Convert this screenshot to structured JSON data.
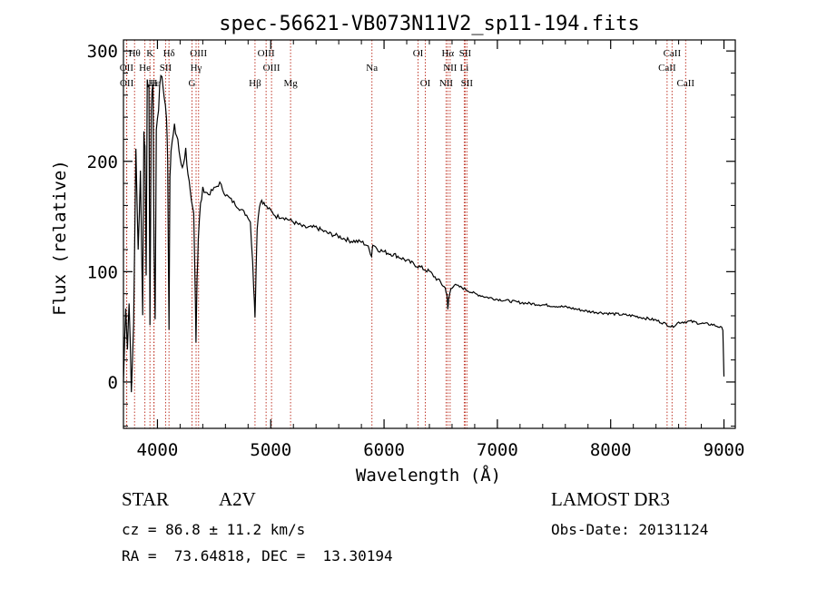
{
  "chart_data": {
    "type": "line",
    "title": "spec-56621-VB073N11V2_sp11-194.fits",
    "xlabel": "Wavelength (Å)",
    "ylabel": "Flux (relative)",
    "xlim": [
      3700,
      9100
    ],
    "ylim": [
      -42,
      310
    ],
    "x_ticks": [
      4000,
      5000,
      6000,
      7000,
      8000,
      9000
    ],
    "y_ticks": [
      0,
      100,
      200,
      300
    ],
    "series": [
      {
        "name": "flux",
        "x": [
          3700,
          3720,
          3735,
          3750,
          3770,
          3790,
          3810,
          3830,
          3850,
          3870,
          3880,
          3890,
          3900,
          3910,
          3925,
          3934,
          3945,
          3960,
          3970,
          3980,
          3990,
          4010,
          4030,
          4060,
          4080,
          4090,
          4102,
          4110,
          4120,
          4150,
          4180,
          4200,
          4220,
          4250,
          4280,
          4300,
          4320,
          4330,
          4340,
          4350,
          4360,
          4380,
          4400,
          4450,
          4500,
          4550,
          4600,
          4650,
          4700,
          4750,
          4800,
          4820,
          4840,
          4850,
          4861,
          4870,
          4880,
          4900,
          4920,
          4950,
          5000,
          5050,
          5100,
          5200,
          5300,
          5400,
          5500,
          5600,
          5700,
          5800,
          5850,
          5890,
          5900,
          5950,
          6000,
          6100,
          6200,
          6300,
          6400,
          6450,
          6500,
          6540,
          6555,
          6563,
          6570,
          6590,
          6620,
          6700,
          6800,
          6900,
          7000,
          7200,
          7400,
          7600,
          7800,
          8000,
          8200,
          8400,
          8500,
          8542,
          8600,
          8700,
          8800,
          8900,
          8960,
          8990,
          9000
        ],
        "y": [
          0,
          70,
          30,
          75,
          -10,
          55,
          210,
          120,
          190,
          60,
          230,
          210,
          100,
          270,
          270,
          50,
          250,
          270,
          120,
          60,
          230,
          250,
          280,
          260,
          240,
          200,
          50,
          190,
          210,
          230,
          220,
          200,
          195,
          210,
          180,
          160,
          150,
          100,
          40,
          95,
          130,
          160,
          175,
          170,
          175,
          180,
          170,
          165,
          160,
          155,
          150,
          145,
          110,
          85,
          60,
          100,
          140,
          160,
          165,
          160,
          155,
          150,
          150,
          145,
          140,
          140,
          135,
          132,
          128,
          127,
          124,
          115,
          125,
          120,
          118,
          115,
          110,
          105,
          100,
          95,
          90,
          85,
          80,
          65,
          75,
          85,
          88,
          85,
          80,
          77,
          75,
          72,
          70,
          68,
          64,
          62,
          60,
          56,
          52,
          50,
          54,
          55,
          53,
          52,
          50,
          48,
          5
        ]
      }
    ],
    "lines_top": [
      {
        "label": "Hθ",
        "wave": 3798
      },
      {
        "label": "K",
        "wave": 3934
      },
      {
        "label": "Hδ",
        "wave": 4102
      },
      {
        "label": "OIII",
        "wave": 4363
      },
      {
        "label": "OIII",
        "wave": 4959
      },
      {
        "label": "OI",
        "wave": 6300
      },
      {
        "label": "Hα",
        "wave": 6563
      },
      {
        "label": "SII",
        "wave": 6716
      },
      {
        "label": "CaII",
        "wave": 8542
      }
    ],
    "lines_mid": [
      {
        "label": "OII",
        "wave": 3727
      },
      {
        "label": "He",
        "wave": 3889
      },
      {
        "label": "SII",
        "wave": 4072
      },
      {
        "label": "Hγ",
        "wave": 4341
      },
      {
        "label": "OIII",
        "wave": 5007
      },
      {
        "label": "Na",
        "wave": 5893
      },
      {
        "label": "NII",
        "wave": 6583
      },
      {
        "label": "Li",
        "wave": 6708
      },
      {
        "label": "CaII",
        "wave": 8498
      }
    ],
    "lines_bot": [
      {
        "label": "OII",
        "wave": 3729
      },
      {
        "label": "Hε",
        "wave": 3970
      },
      {
        "label": "H",
        "wave": 3968
      },
      {
        "label": "G",
        "wave": 4305
      },
      {
        "label": "Hβ",
        "wave": 4861
      },
      {
        "label": "Mg",
        "wave": 5175
      },
      {
        "label": "OI",
        "wave": 6364
      },
      {
        "label": "NII",
        "wave": 6548
      },
      {
        "label": "SII",
        "wave": 6731
      },
      {
        "label": "CaII",
        "wave": 8662
      }
    ]
  },
  "info": {
    "obj_class": "STAR",
    "obj_subclass": "A2V",
    "survey": "LAMOST DR3",
    "cz": "cz = 86.8 ± 11.2 km/s",
    "obs_date": "Obs-Date: 20131124",
    "radec": "RA =  73.64818, DEC =  13.30194"
  },
  "colors": {
    "spectrum": "#000000",
    "line_marker": "#c0392b",
    "axes": "#000000"
  }
}
